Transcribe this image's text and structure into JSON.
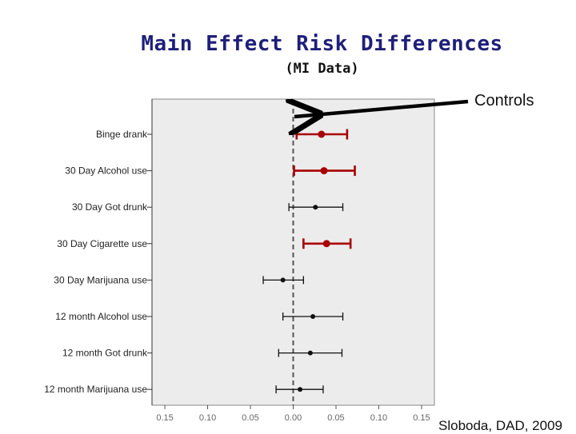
{
  "header": {
    "title": "Main Effect Risk Differences",
    "subtitle": "(MI Data)"
  },
  "annotation": {
    "label": "Controls"
  },
  "credit": {
    "text": "Sloboda, DAD, 2009"
  },
  "colors": {
    "highlight": "#a80000",
    "normal": "#111111",
    "plot_bg": "#ececec",
    "reference_line": "#555555"
  },
  "chart_data": {
    "type": "forest",
    "x_tick_labels": [
      "0.15",
      "0.10",
      "0.05",
      "0.00",
      "0.05",
      "0.10",
      "0.15"
    ],
    "x_tick_values": [
      -0.15,
      -0.1,
      -0.05,
      0.0,
      0.05,
      0.1,
      0.15
    ],
    "xlim": [
      -0.165,
      0.165
    ],
    "reference_line": 0.0,
    "grid": false,
    "rows": [
      {
        "label": "Binge drank",
        "estimate": 0.033,
        "low": 0.004,
        "high": 0.063,
        "highlighted": true
      },
      {
        "label": "30 Day Alcohol use",
        "estimate": 0.036,
        "low": 0.001,
        "high": 0.072,
        "highlighted": true
      },
      {
        "label": "30 Day Got drunk",
        "estimate": 0.026,
        "low": -0.005,
        "high": 0.058,
        "highlighted": false
      },
      {
        "label": "30 Day Cigarette use",
        "estimate": 0.039,
        "low": 0.012,
        "high": 0.067,
        "highlighted": true
      },
      {
        "label": "30 Day Marijuana use",
        "estimate": -0.012,
        "low": -0.035,
        "high": 0.012,
        "highlighted": false
      },
      {
        "label": "12 month Alcohol use",
        "estimate": 0.023,
        "low": -0.012,
        "high": 0.058,
        "highlighted": false
      },
      {
        "label": "12 month Got drunk",
        "estimate": 0.02,
        "low": -0.017,
        "high": 0.057,
        "highlighted": false
      },
      {
        "label": "12 month Marijuana use",
        "estimate": 0.008,
        "low": -0.02,
        "high": 0.035,
        "highlighted": false
      }
    ]
  }
}
